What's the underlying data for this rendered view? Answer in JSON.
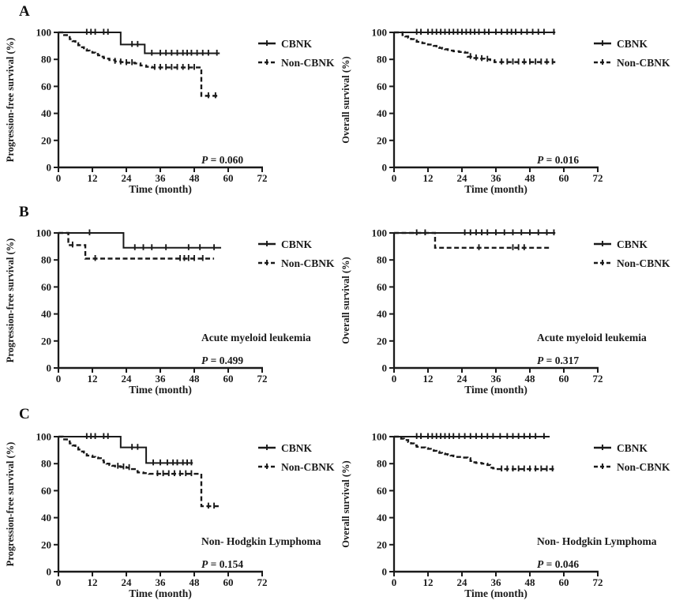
{
  "figure": {
    "background": "#ffffff",
    "line_color": "#1a1a1a",
    "rows": [
      {
        "letter": "A"
      },
      {
        "letter": "B"
      },
      {
        "letter": "C"
      }
    ]
  },
  "rows": [
    {
      "letter": "A"
    },
    {
      "letter": "B"
    },
    {
      "letter": "C"
    }
  ],
  "legend": {
    "items": [
      {
        "label": "CBNK",
        "style": "solid"
      },
      {
        "label": "Non-CBNK",
        "style": "dashed"
      }
    ]
  },
  "chart_data": [
    {
      "id": "A-pfs",
      "type": "line",
      "panel_row": "A",
      "xlabel": "Time (month)",
      "ylabel": "Progression-free survival (%)",
      "xlim": [
        0,
        72
      ],
      "ylim": [
        0,
        100
      ],
      "xticks": [
        0,
        12,
        24,
        36,
        48,
        60,
        72
      ],
      "yticks": [
        0,
        20,
        40,
        60,
        80,
        100
      ],
      "annotation": "",
      "p_italic": "P",
      "p_rest": " = 0.060",
      "grid": false,
      "legend_position": "upper right outside",
      "series": [
        {
          "name": "CBNK",
          "style": "solid",
          "steps": [
            [
              0,
              100
            ],
            [
              22,
              91
            ],
            [
              30.5,
              84.5
            ],
            [
              57,
              84.5
            ]
          ],
          "censors": [
            10,
            11.5,
            13,
            16,
            17.5,
            26,
            28,
            33,
            36,
            38,
            40,
            42,
            44,
            45.5,
            47,
            49,
            51,
            53,
            56
          ]
        },
        {
          "name": "Non-CBNK",
          "style": "dashed",
          "steps": [
            [
              0,
              100
            ],
            [
              2,
              98
            ],
            [
              3,
              96.5
            ],
            [
              4,
              95
            ],
            [
              5,
              93.5
            ],
            [
              6,
              92
            ],
            [
              7,
              90.5
            ],
            [
              8,
              89
            ],
            [
              9,
              87.5
            ],
            [
              10,
              86.5
            ],
            [
              11,
              85.5
            ],
            [
              12,
              85
            ],
            [
              13,
              84
            ],
            [
              14,
              83
            ],
            [
              15,
              82
            ],
            [
              16,
              81
            ],
            [
              17,
              80.5
            ],
            [
              18,
              79.5
            ],
            [
              20,
              78.5
            ],
            [
              22,
              78
            ],
            [
              24,
              77.5
            ],
            [
              27,
              77
            ],
            [
              29,
              75.5
            ],
            [
              31,
              74.5
            ],
            [
              33,
              74
            ],
            [
              50.5,
              53
            ],
            [
              57,
              53
            ]
          ],
          "censors": [
            20,
            22,
            24,
            26,
            34,
            36,
            38,
            40,
            42,
            44,
            46,
            48,
            53,
            55.5
          ]
        }
      ]
    },
    {
      "id": "A-os",
      "type": "line",
      "panel_row": "A",
      "xlabel": "Time (month)",
      "ylabel": "Overall survival (%)",
      "xlim": [
        0,
        72
      ],
      "ylim": [
        0,
        100
      ],
      "xticks": [
        0,
        12,
        24,
        36,
        48,
        60,
        72
      ],
      "yticks": [
        0,
        20,
        40,
        60,
        80,
        100
      ],
      "annotation": "",
      "p_italic": "P",
      "p_rest": " = 0.016",
      "grid": false,
      "legend_position": "upper right outside",
      "series": [
        {
          "name": "CBNK",
          "style": "solid",
          "steps": [
            [
              0,
              100
            ],
            [
              57,
              100
            ]
          ],
          "censors": [
            8,
            9.5,
            12,
            13.5,
            15,
            16.5,
            18,
            19.5,
            21,
            22.5,
            24,
            25.5,
            27,
            28.5,
            30,
            32,
            33.5,
            36,
            38,
            40,
            41.5,
            43,
            45,
            47,
            49,
            51,
            53,
            56.5
          ]
        },
        {
          "name": "Non-CBNK",
          "style": "dashed",
          "steps": [
            [
              0,
              100
            ],
            [
              3,
              98
            ],
            [
              4,
              97
            ],
            [
              5,
              96
            ],
            [
              6,
              95
            ],
            [
              7,
              94
            ],
            [
              8,
              93
            ],
            [
              9,
              92.5
            ],
            [
              10,
              92
            ],
            [
              12,
              91
            ],
            [
              14,
              90
            ],
            [
              15,
              89
            ],
            [
              16,
              88.5
            ],
            [
              17,
              88
            ],
            [
              18,
              87.5
            ],
            [
              19,
              87
            ],
            [
              20,
              86.5
            ],
            [
              21,
              86
            ],
            [
              23,
              85.5
            ],
            [
              25,
              85
            ],
            [
              26,
              82
            ],
            [
              28,
              81
            ],
            [
              30,
              80.5
            ],
            [
              32,
              80
            ],
            [
              34,
              79.5
            ],
            [
              35.5,
              78
            ],
            [
              57,
              78
            ]
          ],
          "censors": [
            27,
            29,
            31,
            33,
            38,
            40,
            42,
            44,
            46,
            48,
            50,
            52,
            54,
            56
          ]
        }
      ]
    },
    {
      "id": "B-pfs",
      "type": "line",
      "panel_row": "B",
      "xlabel": "Time (month)",
      "ylabel": "Progression-free survival (%)",
      "xlim": [
        0,
        72
      ],
      "ylim": [
        0,
        100
      ],
      "xticks": [
        0,
        12,
        24,
        36,
        48,
        60,
        72
      ],
      "yticks": [
        0,
        20,
        40,
        60,
        80,
        100
      ],
      "annotation": "Acute myeloid leukemia",
      "p_italic": "P",
      "p_rest": " = 0.499",
      "grid": false,
      "legend_position": "upper right outside",
      "series": [
        {
          "name": "CBNK",
          "style": "solid",
          "steps": [
            [
              0,
              100
            ],
            [
              23,
              89
            ],
            [
              57.5,
              89
            ]
          ],
          "censors": [
            11,
            27,
            30,
            33,
            38,
            46,
            50,
            55
          ]
        },
        {
          "name": "Non-CBNK",
          "style": "dashed",
          "steps": [
            [
              0,
              100
            ],
            [
              3.5,
              91
            ],
            [
              9.5,
              81
            ],
            [
              55,
              81
            ]
          ],
          "censors": [
            5,
            13,
            43,
            44.5,
            46,
            48,
            51
          ]
        }
      ]
    },
    {
      "id": "B-os",
      "type": "line",
      "panel_row": "B",
      "xlabel": "Time (month)",
      "ylabel": "Overall survival (%)",
      "xlim": [
        0,
        72
      ],
      "ylim": [
        0,
        100
      ],
      "xticks": [
        0,
        12,
        24,
        36,
        48,
        60,
        72
      ],
      "yticks": [
        0,
        20,
        40,
        60,
        80,
        100
      ],
      "annotation": "Acute myeloid leukemia",
      "p_italic": "P",
      "p_rest": " = 0.317",
      "grid": false,
      "legend_position": "upper right outside",
      "series": [
        {
          "name": "CBNK",
          "style": "solid",
          "steps": [
            [
              0,
              100
            ],
            [
              57,
              100
            ]
          ],
          "censors": [
            8,
            11,
            25,
            27,
            29,
            31,
            33,
            36,
            39,
            42,
            45,
            48,
            51,
            54,
            56.5
          ]
        },
        {
          "name": "Non-CBNK",
          "style": "dashed",
          "steps": [
            [
              0,
              100
            ],
            [
              14.5,
              89
            ],
            [
              55,
              89
            ]
          ],
          "censors": [
            30,
            42,
            44,
            46
          ]
        }
      ]
    },
    {
      "id": "C-pfs",
      "type": "line",
      "panel_row": "C",
      "xlabel": "Time (month)",
      "ylabel": "Progression-free survival (%)",
      "xlim": [
        0,
        72
      ],
      "ylim": [
        0,
        100
      ],
      "xticks": [
        0,
        12,
        24,
        36,
        48,
        60,
        72
      ],
      "yticks": [
        0,
        20,
        40,
        60,
        80,
        100
      ],
      "annotation": "Non- Hodgkin Lymphoma",
      "p_italic": "P",
      "p_rest": " = 0.154",
      "grid": false,
      "legend_position": "upper right outside",
      "series": [
        {
          "name": "CBNK",
          "style": "solid",
          "steps": [
            [
              0,
              100
            ],
            [
              22,
              92
            ],
            [
              31,
              80.5
            ],
            [
              47.5,
              80.5
            ]
          ],
          "censors": [
            10,
            11.5,
            13,
            16,
            17.5,
            26,
            28,
            33.5,
            36,
            38.5,
            40.5,
            42,
            44,
            45.5,
            47
          ]
        },
        {
          "name": "Non-CBNK",
          "style": "dashed",
          "steps": [
            [
              0,
              100
            ],
            [
              1.5,
              98
            ],
            [
              3,
              96.5
            ],
            [
              4,
              95
            ],
            [
              5,
              93.5
            ],
            [
              6,
              92
            ],
            [
              7,
              90.5
            ],
            [
              8,
              89
            ],
            [
              9,
              87
            ],
            [
              10,
              86
            ],
            [
              12,
              85
            ],
            [
              13,
              84.5
            ],
            [
              14,
              84
            ],
            [
              15,
              82.5
            ],
            [
              16,
              81
            ],
            [
              17,
              80
            ],
            [
              18,
              79
            ],
            [
              19,
              78.5
            ],
            [
              20,
              78
            ],
            [
              22,
              77.5
            ],
            [
              24,
              77
            ],
            [
              26,
              76
            ],
            [
              27,
              74.5
            ],
            [
              28,
              73.5
            ],
            [
              30,
              73
            ],
            [
              32,
              72.5
            ],
            [
              50.5,
              48.5
            ],
            [
              57,
              48.5
            ]
          ],
          "censors": [
            21,
            23,
            25,
            35,
            37,
            39,
            41,
            43,
            45,
            47,
            53,
            55
          ]
        }
      ]
    },
    {
      "id": "C-os",
      "type": "line",
      "panel_row": "C",
      "xlabel": "Time (month)",
      "ylabel": "Overall survival (%)",
      "xlim": [
        0,
        72
      ],
      "ylim": [
        0,
        100
      ],
      "xticks": [
        0,
        12,
        24,
        36,
        48,
        60,
        72
      ],
      "yticks": [
        0,
        20,
        40,
        60,
        80,
        100
      ],
      "annotation": "Non- Hodgkin Lymphoma",
      "p_italic": "P",
      "p_rest": " = 0.046",
      "grid": false,
      "legend_position": "upper right outside",
      "series": [
        {
          "name": "CBNK",
          "style": "solid",
          "steps": [
            [
              0,
              100
            ],
            [
              55,
              100
            ]
          ],
          "censors": [
            8,
            9.5,
            12,
            13.5,
            15,
            16.5,
            18,
            19.5,
            21,
            23,
            25,
            27,
            29,
            31,
            33,
            35,
            37.5,
            40,
            42,
            44,
            46,
            48,
            50,
            53
          ]
        },
        {
          "name": "Non-CBNK",
          "style": "dashed",
          "steps": [
            [
              0,
              100
            ],
            [
              2.5,
              98.5
            ],
            [
              3.5,
              97.5
            ],
            [
              5,
              96
            ],
            [
              6,
              95
            ],
            [
              7,
              93.5
            ],
            [
              8,
              92.5
            ],
            [
              9,
              92
            ],
            [
              11,
              91.5
            ],
            [
              12,
              91
            ],
            [
              13,
              90
            ],
            [
              14,
              89.5
            ],
            [
              15,
              89
            ],
            [
              16,
              88
            ],
            [
              17,
              87.5
            ],
            [
              18,
              87
            ],
            [
              19,
              86.5
            ],
            [
              20,
              86
            ],
            [
              21,
              85.5
            ],
            [
              22,
              85
            ],
            [
              24,
              84.5
            ],
            [
              26,
              84
            ],
            [
              27,
              82
            ],
            [
              28,
              81
            ],
            [
              29,
              80.5
            ],
            [
              31,
              80
            ],
            [
              33,
              79
            ],
            [
              34,
              77
            ],
            [
              35,
              76.5
            ],
            [
              36,
              76
            ],
            [
              57,
              76
            ]
          ],
          "censors": [
            38,
            40,
            42,
            44,
            46,
            48,
            50,
            52,
            54,
            56
          ]
        }
      ]
    }
  ]
}
